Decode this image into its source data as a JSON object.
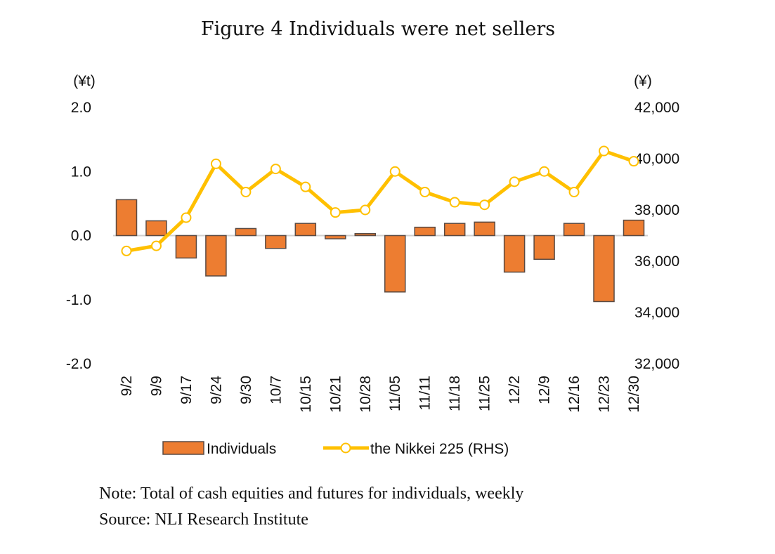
{
  "title": "Figure 4 Individuals were net sellers",
  "notes": [
    "Note: Total of cash equities and futures for individuals, weekly",
    "Source: NLI Research Institute"
  ],
  "chart_data": {
    "type": "bar+line",
    "title": "Figure 4 Individuals were net sellers",
    "categories": [
      "9/2",
      "9/9",
      "9/17",
      "9/24",
      "9/30",
      "10/7",
      "10/15",
      "10/21",
      "10/28",
      "11/05",
      "11/11",
      "11/18",
      "11/25",
      "12/2",
      "12/9",
      "12/16",
      "12/23",
      "12/30"
    ],
    "left_axis": {
      "unit": "(¥t)",
      "range": [
        -2.0,
        2.0
      ],
      "ticks": [
        "2.0",
        "1.0",
        "0.0",
        "-1.0",
        "-2.0"
      ]
    },
    "right_axis": {
      "unit": "(¥)",
      "range": [
        32000,
        42000
      ],
      "ticks": [
        "42,000",
        "40,000",
        "38,000",
        "36,000",
        "34,000",
        "32,000"
      ]
    },
    "series": [
      {
        "name": "Individuals",
        "type": "bar",
        "axis": "left",
        "color": "#ED7D31",
        "values": [
          0.56,
          0.23,
          -0.35,
          -0.63,
          0.11,
          -0.2,
          0.19,
          -0.05,
          0.03,
          -0.88,
          0.13,
          0.19,
          0.21,
          -0.57,
          -0.37,
          0.19,
          -1.03,
          0.24
        ]
      },
      {
        "name": "the Nikkei 225 (RHS)",
        "type": "line",
        "axis": "right",
        "color": "#FFC000",
        "values": [
          36400,
          36600,
          37700,
          39800,
          38700,
          39600,
          38900,
          37900,
          38000,
          39500,
          38700,
          38300,
          38200,
          39100,
          39500,
          38700,
          40300,
          39900
        ]
      }
    ],
    "grid": false,
    "legend": "bottom"
  }
}
